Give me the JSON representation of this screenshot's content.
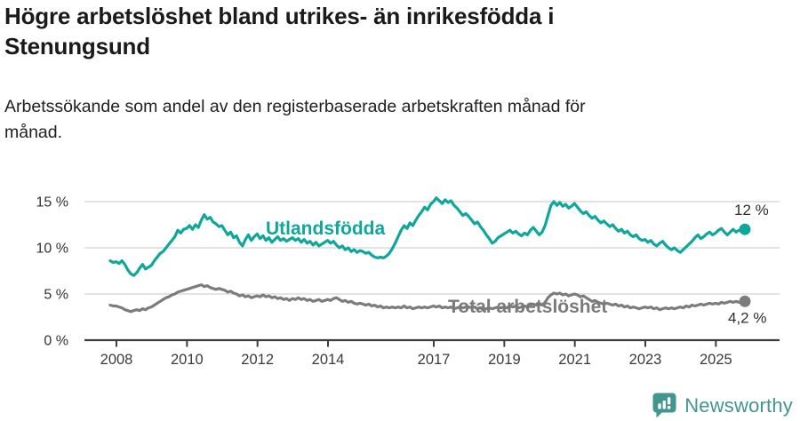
{
  "header": {
    "title_lines": [
      "Högre arbetslöshet bland utrikes- än inrikesfödda i",
      "Stenungsund"
    ],
    "subtitle_lines": [
      "Arbetssökande som andel av den registerbaserade arbetskraften månad för",
      "månad."
    ]
  },
  "footer": {
    "brand": "Newsworthy",
    "brand_color": "#41968F",
    "icon": "newsworthy-bubble-chart-icon"
  },
  "chart_data": {
    "type": "line",
    "title": "Högre arbetslöshet bland utrikes- än inrikesfödda i Stenungsund",
    "subtitle": "Arbetssökande som andel av den registerbaserade arbetskraften månad för månad.",
    "unit": "%",
    "frequency": "monthly",
    "x_start": "2007-11",
    "x_end": "2025-11",
    "ylim": [
      0,
      16
    ],
    "grid": "horizontal",
    "legend_position": "inline-labels",
    "y_ticks": [
      {
        "value": 15,
        "label": "15 %"
      },
      {
        "value": 10,
        "label": "10 %"
      },
      {
        "value": 5,
        "label": "5 %"
      },
      {
        "value": 0,
        "label": "0 %"
      }
    ],
    "x_ticks": [
      {
        "year": 2008,
        "label": "2008"
      },
      {
        "year": 2010,
        "label": "2010"
      },
      {
        "year": 2012,
        "label": "2012"
      },
      {
        "year": 2014,
        "label": "2014"
      },
      {
        "year": 2017,
        "label": "2017"
      },
      {
        "year": 2019,
        "label": "2019"
      },
      {
        "year": 2021,
        "label": "2021"
      },
      {
        "year": 2023,
        "label": "2023"
      },
      {
        "year": 2025,
        "label": "2025"
      }
    ],
    "series": [
      {
        "id": "utlandsfodda",
        "name": "Utlandsfödda",
        "color": "#0FA79C",
        "end_label": "12 %",
        "last_value": 12.0,
        "values": [
          8.6,
          8.4,
          8.5,
          8.3,
          8.6,
          8.2,
          7.6,
          7.2,
          7.0,
          7.3,
          7.8,
          8.2,
          7.7,
          7.9,
          8.1,
          8.6,
          9.0,
          9.4,
          9.6,
          10.0,
          10.4,
          10.8,
          11.2,
          11.9,
          11.6,
          12.0,
          12.1,
          12.4,
          12.0,
          12.5,
          12.2,
          13.0,
          13.6,
          13.1,
          13.3,
          12.8,
          12.6,
          12.3,
          12.4,
          11.9,
          11.4,
          11.7,
          11.1,
          11.3,
          10.6,
          10.2,
          10.9,
          11.4,
          10.8,
          11.2,
          11.5,
          11.0,
          11.3,
          10.8,
          11.1,
          10.6,
          10.9,
          11.2,
          10.8,
          11.0,
          10.7,
          10.9,
          11.1,
          10.8,
          11.0,
          10.6,
          10.9,
          10.5,
          10.7,
          10.3,
          10.6,
          10.2,
          10.4,
          10.6,
          10.8,
          10.5,
          10.7,
          10.3,
          10.0,
          10.2,
          9.8,
          10.0,
          9.6,
          9.8,
          9.5,
          9.7,
          9.6,
          9.4,
          9.5,
          9.2,
          9.0,
          8.9,
          9.0,
          8.9,
          9.1,
          9.4,
          9.9,
          10.5,
          11.2,
          11.9,
          12.4,
          12.1,
          12.7,
          12.4,
          13.0,
          13.5,
          13.9,
          14.4,
          14.1,
          14.7,
          15.0,
          15.4,
          15.1,
          14.8,
          15.2,
          14.9,
          15.1,
          14.6,
          14.3,
          13.9,
          13.5,
          13.7,
          13.4,
          13.0,
          12.6,
          12.8,
          12.3,
          11.9,
          11.4,
          11.0,
          10.5,
          10.7,
          11.1,
          11.3,
          11.5,
          11.7,
          11.9,
          11.6,
          11.8,
          11.5,
          11.3,
          11.6,
          11.4,
          11.9,
          12.2,
          11.8,
          11.4,
          11.7,
          12.4,
          13.5,
          14.6,
          15.0,
          14.6,
          14.9,
          14.5,
          14.7,
          14.3,
          14.5,
          14.8,
          14.4,
          14.0,
          13.7,
          13.9,
          13.5,
          13.2,
          13.4,
          13.0,
          12.7,
          12.9,
          12.6,
          12.3,
          12.5,
          12.1,
          11.8,
          12.0,
          11.6,
          11.8,
          11.4,
          11.2,
          11.4,
          11.0,
          10.8,
          10.9,
          10.6,
          10.8,
          10.4,
          10.2,
          10.5,
          10.7,
          10.3,
          10.0,
          9.8,
          10.0,
          9.7,
          9.5,
          9.8,
          10.1,
          10.4,
          10.7,
          11.1,
          11.4,
          11.0,
          11.2,
          11.5,
          11.7,
          11.4,
          11.6,
          11.9,
          12.1,
          11.7,
          11.4,
          11.7,
          12.0,
          11.7,
          11.9,
          11.8,
          12.0
        ]
      },
      {
        "id": "total",
        "name": "Total arbetslöshet",
        "color": "#7C7C7C",
        "end_label": "4,2 %",
        "last_value": 4.2,
        "values": [
          3.8,
          3.7,
          3.7,
          3.6,
          3.5,
          3.3,
          3.2,
          3.1,
          3.2,
          3.3,
          3.2,
          3.4,
          3.3,
          3.5,
          3.6,
          3.8,
          4.0,
          4.2,
          4.4,
          4.6,
          4.7,
          4.9,
          5.0,
          5.2,
          5.3,
          5.4,
          5.5,
          5.6,
          5.7,
          5.8,
          5.9,
          6.0,
          5.8,
          5.9,
          5.7,
          5.6,
          5.5,
          5.6,
          5.5,
          5.4,
          5.2,
          5.3,
          5.1,
          5.0,
          4.8,
          4.9,
          4.7,
          4.8,
          4.6,
          4.7,
          4.8,
          4.7,
          4.9,
          4.7,
          4.8,
          4.6,
          4.7,
          4.5,
          4.6,
          4.4,
          4.5,
          4.3,
          4.5,
          4.4,
          4.6,
          4.4,
          4.5,
          4.3,
          4.4,
          4.2,
          4.3,
          4.4,
          4.2,
          4.3,
          4.4,
          4.3,
          4.5,
          4.6,
          4.4,
          4.2,
          4.3,
          4.1,
          4.2,
          4.0,
          3.9,
          4.0,
          3.9,
          3.8,
          3.9,
          3.7,
          3.8,
          3.6,
          3.7,
          3.5,
          3.6,
          3.5,
          3.6,
          3.5,
          3.6,
          3.5,
          3.7,
          3.5,
          3.6,
          3.4,
          3.5,
          3.6,
          3.5,
          3.6,
          3.5,
          3.6,
          3.7,
          3.6,
          3.7,
          3.5,
          3.6,
          3.5,
          3.6,
          3.4,
          3.5,
          3.6,
          3.5,
          3.6,
          3.6,
          3.5,
          3.6,
          3.4,
          3.5,
          3.3,
          3.4,
          3.5,
          3.4,
          3.5,
          3.6,
          3.5,
          3.6,
          3.5,
          3.7,
          3.6,
          3.7,
          3.5,
          3.6,
          3.7,
          3.6,
          3.8,
          3.9,
          3.8,
          3.9,
          3.8,
          4.1,
          4.6,
          4.9,
          5.1,
          5.0,
          5.1,
          4.9,
          5.0,
          4.8,
          4.9,
          5.0,
          4.9,
          4.7,
          4.8,
          4.6,
          4.4,
          4.2,
          4.3,
          4.1,
          4.0,
          3.9,
          4.0,
          3.9,
          3.8,
          3.9,
          3.7,
          3.8,
          3.6,
          3.7,
          3.5,
          3.6,
          3.5,
          3.4,
          3.5,
          3.6,
          3.5,
          3.6,
          3.4,
          3.5,
          3.3,
          3.4,
          3.5,
          3.4,
          3.5,
          3.4,
          3.5,
          3.6,
          3.5,
          3.7,
          3.6,
          3.8,
          3.7,
          3.8,
          3.9,
          3.8,
          3.9,
          4.0,
          3.9,
          4.0,
          3.9,
          4.1,
          4.0,
          4.1,
          4.2,
          4.1,
          4.2,
          4.1,
          4.2,
          4.2
        ]
      }
    ]
  }
}
